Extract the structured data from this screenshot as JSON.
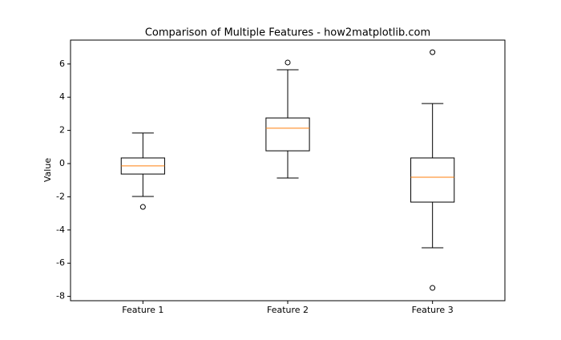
{
  "chart_data": {
    "type": "box",
    "title": "Comparison of Multiple Features - how2matplotlib.com",
    "y_label": "Value",
    "categories": [
      "Feature 1",
      "Feature 2",
      "Feature 3"
    ],
    "whisker_low": [
      -1.98,
      -0.87,
      -5.07
    ],
    "q1": [
      -0.63,
      0.77,
      -2.32
    ],
    "median": [
      -0.14,
      2.13,
      -0.82
    ],
    "q3": [
      0.34,
      2.75,
      0.34
    ],
    "whisker_high": [
      1.84,
      5.65,
      3.62
    ],
    "outliers": [
      [
        -2.61
      ],
      [
        6.09
      ],
      [
        6.71,
        -7.49
      ]
    ],
    "box_color": "#000000",
    "median_color": "#ff7f0e",
    "ylim": [
      -8.26,
      7.44
    ],
    "yticks": [
      -8,
      -6,
      -4,
      -2,
      0,
      2,
      4,
      6
    ],
    "grid": false
  }
}
